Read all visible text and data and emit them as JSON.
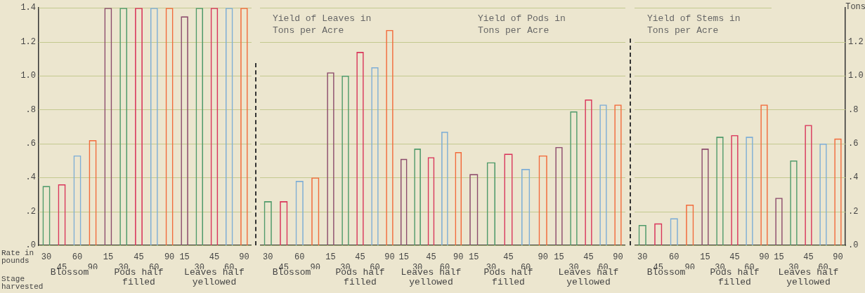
{
  "chart_data": [
    {
      "type": "bar",
      "xlabel": "Blossom",
      "categories": [
        "30",
        "45",
        "60",
        "90"
      ],
      "values": [
        0.35,
        0.36,
        0.53,
        0.62
      ],
      "colors": [
        "#4f9a6a",
        "#d9345a",
        "#7eaed6",
        "#f26a3a"
      ],
      "ylim": [
        0,
        1.4
      ],
      "yticks": [
        {
          "value": 0,
          "label": ".0"
        },
        {
          "value": 0.2,
          "label": ".2"
        },
        {
          "value": 0.4,
          "label": ".4"
        },
        {
          "value": 0.6,
          "label": ".6"
        },
        {
          "value": 0.8,
          "label": ".8"
        },
        {
          "value": 1,
          "label": "1.0"
        },
        {
          "value": 1.2,
          "label": "1.2"
        },
        {
          "value": 1.4,
          "label": "1.4"
        }
      ],
      "grid": "y",
      "annotations": [
        "Rate in pounds",
        "Stage harvested"
      ]
    },
    {
      "type": "bar",
      "xlabel": "Pods half filled",
      "categories": [
        "15",
        "30",
        "45",
        "60",
        "90"
      ],
      "values": [
        1.4,
        1.4,
        1.4,
        1.4,
        1.4
      ],
      "colors": [
        "#8b4a6b",
        "#4f9a6a",
        "#d9345a",
        "#7eaed6",
        "#f26a3a"
      ],
      "ylim": [
        0,
        1.4
      ],
      "yticks": [
        0,
        0.2,
        0.4,
        0.6,
        0.8,
        1,
        1.2,
        1.4
      ],
      "grid": "y",
      "tick_labels": "x"
    },
    {
      "type": "bar",
      "xlabel": "Leaves half yellowed",
      "categories": [
        "15",
        "30",
        "45",
        "60",
        "90"
      ],
      "values": [
        1.35,
        1.4,
        1.4,
        1.4,
        1.4
      ],
      "colors": [
        "#8b4a6b",
        "#4f9a6a",
        "#d9345a",
        "#7eaed6",
        "#f26a3a"
      ],
      "ylim": [
        0,
        1.4
      ],
      "yticks": [
        0,
        0.2,
        0.4,
        0.6,
        0.8,
        1,
        1.2,
        1.4
      ],
      "grid": "y",
      "tick_labels": "x"
    },
    {
      "type": "bar",
      "title": "Yield of Leaves in Tons per Acre",
      "xlabel": "Blossom",
      "categories": [
        "30",
        "45",
        "60",
        "90"
      ],
      "values": [
        0.26,
        0.26,
        0.38,
        0.4
      ],
      "colors": [
        "#4f9a6a",
        "#d9345a",
        "#7eaed6",
        "#f26a3a"
      ],
      "ylim": [
        0,
        1.4
      ],
      "yticks": [
        0,
        0.2,
        0.4,
        0.6,
        0.8,
        1,
        1.2,
        1.4
      ],
      "grid": "y",
      "tick_labels": "x"
    },
    {
      "type": "bar",
      "xlabel": "Pods half filled",
      "categories": [
        "15",
        "30",
        "45",
        "60",
        "90"
      ],
      "values": [
        1.02,
        1,
        1.14,
        1.05,
        1.27
      ],
      "colors": [
        "#8b4a6b",
        "#4f9a6a",
        "#d9345a",
        "#7eaed6",
        "#f26a3a"
      ],
      "ylim": [
        0,
        1.4
      ],
      "yticks": [
        0,
        0.2,
        0.4,
        0.6,
        0.8,
        1,
        1.2,
        1.4
      ],
      "grid": "y",
      "tick_labels": "x"
    },
    {
      "type": "bar",
      "xlabel": "Leaves half yellowed",
      "categories": [
        "15",
        "30",
        "45",
        "60",
        "90"
      ],
      "values": [
        0.51,
        0.57,
        0.52,
        0.67,
        0.55
      ],
      "colors": [
        "#8b4a6b",
        "#4f9a6a",
        "#d9345a",
        "#7eaed6",
        "#f26a3a"
      ],
      "ylim": [
        0,
        1.4
      ],
      "yticks": [
        0,
        0.2,
        0.4,
        0.6,
        0.8,
        1,
        1.2,
        1.4
      ],
      "grid": "y",
      "tick_labels": "x"
    },
    {
      "type": "bar",
      "title": "Yield of Pods in Tons per Acre",
      "xlabel": "Pods half filled",
      "categories": [
        "15",
        "30",
        "45",
        "60",
        "90"
      ],
      "values": [
        0.42,
        0.49,
        0.54,
        0.45,
        0.53
      ],
      "colors": [
        "#8b4a6b",
        "#4f9a6a",
        "#d9345a",
        "#7eaed6",
        "#f26a3a"
      ],
      "ylim": [
        0,
        1.4
      ],
      "yticks": [
        0,
        0.2,
        0.4,
        0.6,
        0.8,
        1,
        1.2,
        1.4
      ],
      "grid": "y",
      "tick_labels": "x"
    },
    {
      "type": "bar",
      "xlabel": "Leaves half yellowed",
      "categories": [
        "15",
        "30",
        "45",
        "60",
        "90"
      ],
      "values": [
        0.58,
        0.79,
        0.86,
        0.83,
        0.83
      ],
      "colors": [
        "#8b4a6b",
        "#4f9a6a",
        "#d9345a",
        "#7eaed6",
        "#f26a3a"
      ],
      "ylim": [
        0,
        1.4
      ],
      "yticks": [
        0,
        0.2,
        0.4,
        0.6,
        0.8,
        1,
        1.2,
        1.4
      ],
      "grid": "y",
      "tick_labels": "x"
    },
    {
      "type": "bar",
      "title": "Yield of Stems in Tons per Acre",
      "xlabel": "Blossom",
      "categories": [
        "30",
        "45",
        "60",
        "90"
      ],
      "values": [
        0.12,
        0.13,
        0.16,
        0.24
      ],
      "colors": [
        "#4f9a6a",
        "#d9345a",
        "#7eaed6",
        "#f26a3a"
      ],
      "ylim": [
        0,
        1.4
      ],
      "yticks": [
        0,
        0.2,
        0.4,
        0.6,
        0.8,
        1,
        1.2,
        1.4
      ],
      "grid": "y",
      "tick_labels": "x"
    },
    {
      "type": "bar",
      "xlabel": "Pods half filled",
      "categories": [
        "15",
        "30",
        "45",
        "60",
        "90"
      ],
      "values": [
        0.57,
        0.64,
        0.65,
        0.64,
        0.83
      ],
      "colors": [
        "#8b4a6b",
        "#4f9a6a",
        "#d9345a",
        "#7eaed6",
        "#f26a3a"
      ],
      "ylim": [
        0,
        1.4
      ],
      "yticks": [
        0,
        0.2,
        0.4,
        0.6,
        0.8,
        1,
        1.2,
        1.4
      ],
      "grid": "y",
      "tick_labels": "x"
    },
    {
      "type": "bar",
      "xlabel": "Leaves half yellowed",
      "categories": [
        "15",
        "30",
        "45",
        "60",
        "90"
      ],
      "colors": [
        "#8b4a6b",
        "#4f9a6a",
        "#d9345a",
        "#7eaed6",
        "#f26a3a"
      ],
      "series": [
        {
          "axis": "y2",
          "values": [
            0.28,
            0.5,
            0.71,
            0.6,
            0.63
          ]
        }
      ],
      "y2lim": [
        0,
        1.4
      ],
      "y2ticks": [
        {
          "value": 0,
          "label": ".0"
        },
        {
          "value": 0.2,
          "label": ".2"
        },
        {
          "value": 0.4,
          "label": ".4"
        },
        {
          "value": 0.6,
          "label": ".6"
        },
        {
          "value": 0.8,
          "label": ".8"
        },
        {
          "value": 1,
          "label": "1.0"
        },
        {
          "value": 1.2,
          "label": "1.2"
        }
      ],
      "y2label": "Tons",
      "grid": "y"
    }
  ]
}
